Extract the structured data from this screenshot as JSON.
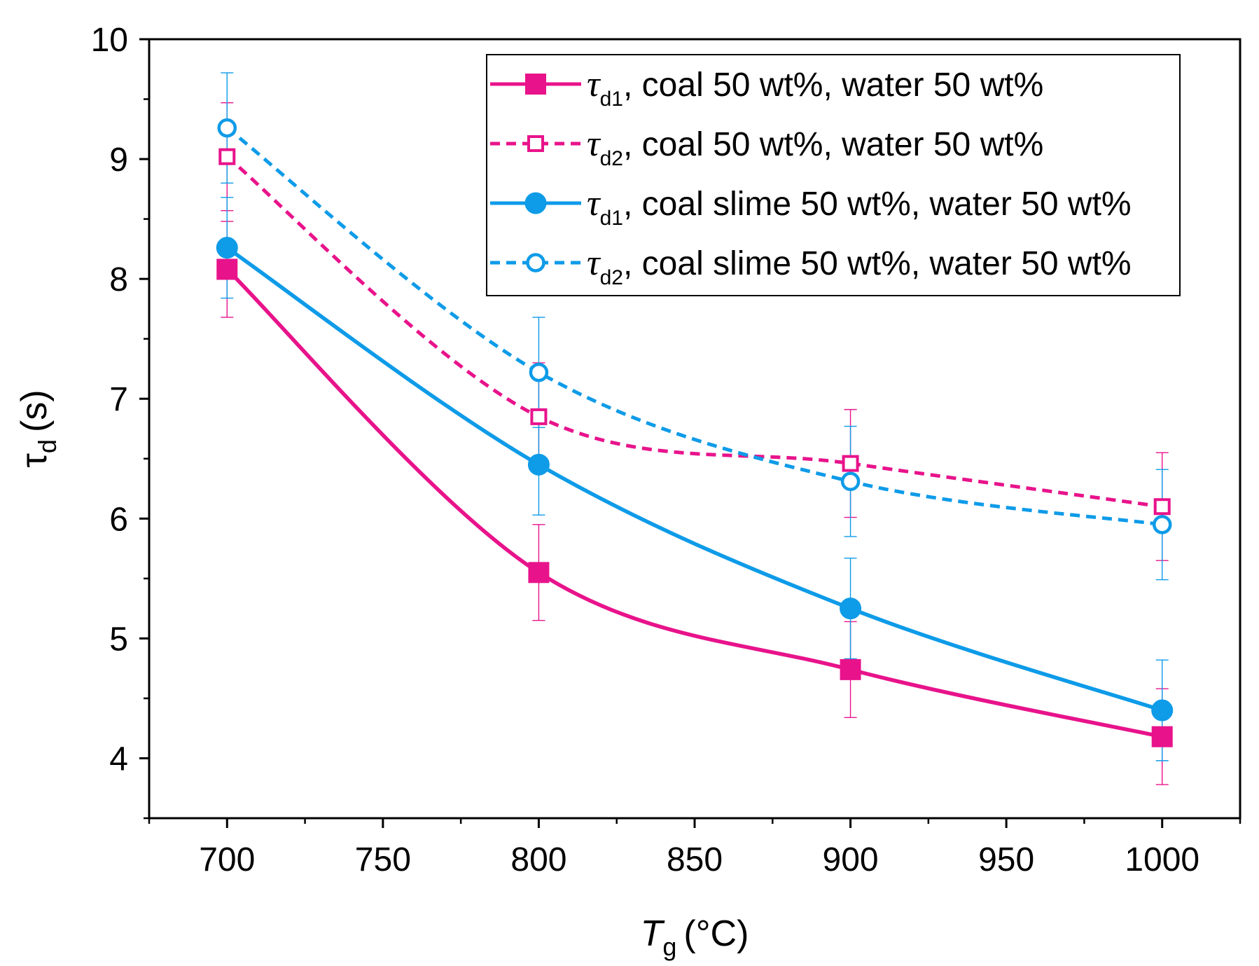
{
  "chart_data": {
    "type": "line",
    "title": "",
    "xlabel": {
      "symbol": "T",
      "subscript": "g",
      "unit": "(°C)"
    },
    "ylabel": {
      "symbol": "τ",
      "subscript": "d",
      "unit": "(s)"
    },
    "xlim": [
      675,
      1025
    ],
    "ylim": [
      3.5,
      10
    ],
    "x_ticks": [
      700,
      750,
      800,
      850,
      900,
      950,
      1000
    ],
    "x_tick_labels": [
      "700",
      "750",
      "800",
      "850",
      "900",
      "950",
      "1000"
    ],
    "y_ticks": [
      4,
      5,
      6,
      7,
      8,
      9,
      10
    ],
    "y_tick_labels": [
      "4",
      "5",
      "6",
      "7",
      "8",
      "9",
      "10"
    ],
    "legend_position": "top-right",
    "series": [
      {
        "name": "τd1, coal 50 wt%, water 50 wt%",
        "legend_symbol": "τ",
        "legend_sub": "d1",
        "legend_rest": ", coal 50 wt%, water 50 wt%",
        "color": "#E8138B",
        "line_style": "solid",
        "marker": "square",
        "filled": true,
        "x": [
          700,
          800,
          900,
          1000
        ],
        "y": [
          8.08,
          5.55,
          4.74,
          4.18
        ],
        "err": [
          0.4,
          0.4,
          0.4,
          0.4
        ]
      },
      {
        "name": "τd2, coal 50 wt%, water 50 wt%",
        "legend_symbol": "τ",
        "legend_sub": "d2",
        "legend_rest": ", coal 50 wt%, water 50 wt%",
        "color": "#E8138B",
        "line_style": "dashed",
        "marker": "square",
        "filled": false,
        "x": [
          700,
          800,
          900,
          1000
        ],
        "y": [
          9.02,
          6.85,
          6.46,
          6.1
        ],
        "err": [
          0.45,
          0.45,
          0.45,
          0.45
        ]
      },
      {
        "name": "τd1, coal slime 50 wt%, water 50 wt%",
        "legend_symbol": "τ",
        "legend_sub": "d1",
        "legend_rest": ", coal slime 50 wt%, water 50 wt%",
        "color": "#0E9BE8",
        "line_style": "solid",
        "marker": "circle",
        "filled": true,
        "x": [
          700,
          800,
          900,
          1000
        ],
        "y": [
          8.26,
          6.45,
          5.25,
          4.4
        ],
        "err": [
          0.42,
          0.42,
          0.42,
          0.42
        ]
      },
      {
        "name": "τd2, coal slime 50 wt%, water 50 wt%",
        "legend_symbol": "τ",
        "legend_sub": "d2",
        "legend_rest": ", coal slime 50 wt%, water 50 wt%",
        "color": "#0E9BE8",
        "line_style": "dashed",
        "marker": "circle",
        "filled": false,
        "x": [
          700,
          800,
          900,
          1000
        ],
        "y": [
          9.26,
          7.22,
          6.31,
          5.95
        ],
        "err": [
          0.46,
          0.46,
          0.46,
          0.46
        ]
      }
    ]
  }
}
